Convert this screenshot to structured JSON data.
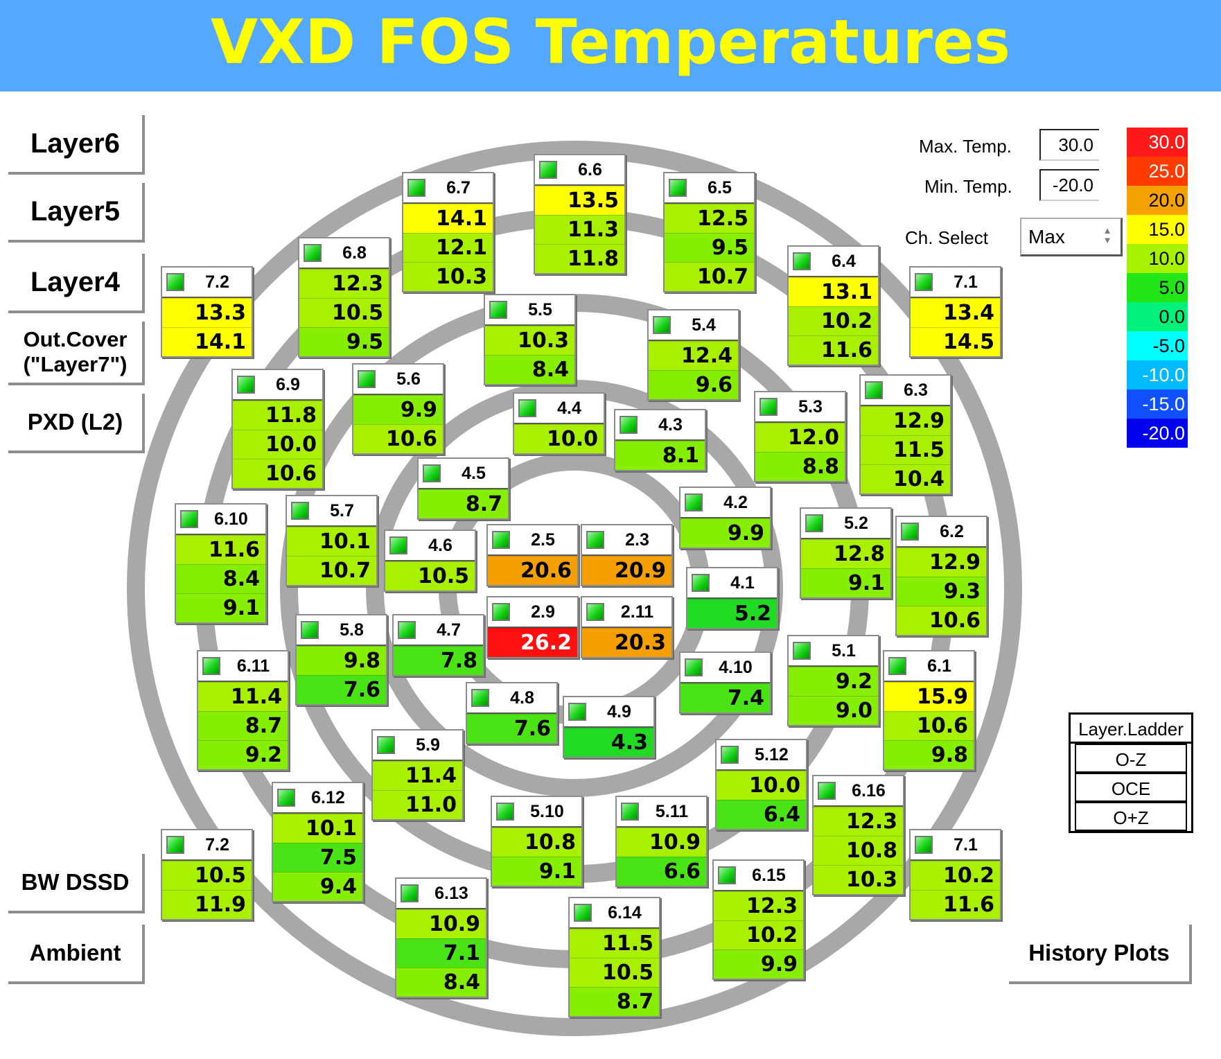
{
  "title": "VXD FOS Temperatures",
  "nav": {
    "layer6": "Layer6",
    "layer5": "Layer5",
    "layer4": "Layer4",
    "out_cover": "Out.Cover\n(\"Layer7\")",
    "pxd": "PXD (L2)",
    "bw_dssd": "BW DSSD",
    "ambient": "Ambient",
    "history": "History Plots"
  },
  "controls": {
    "max_label": "Max. Temp.",
    "max_value": "30.0",
    "min_label": "Min. Temp.",
    "min_value": "-20.0",
    "ch_label": "Ch. Select",
    "ch_value": "Max"
  },
  "colors": {
    "header": "#55a8ff",
    "title": "#ffff00",
    "ring": "#a8a8a8"
  },
  "scale": [
    {
      "label": "30.0",
      "color": "#ff1a1a"
    },
    {
      "label": "25.0",
      "color": "#ff3b00"
    },
    {
      "label": "20.0",
      "color": "#f5a100"
    },
    {
      "label": "15.0",
      "color": "#ffff00"
    },
    {
      "label": "10.0",
      "color": "#a6f200"
    },
    {
      "label": "5.0",
      "color": "#22e61a"
    },
    {
      "label": "0.0",
      "color": "#00f07a"
    },
    {
      "label": "-5.0",
      "color": "#00ffff"
    },
    {
      "label": "-10.0",
      "color": "#00baff"
    },
    {
      "label": "-15.0",
      "color": "#1050ff"
    },
    {
      "label": "-20.0",
      "color": "#0000ee"
    }
  ],
  "legend": {
    "header": "Layer.Ladder",
    "rows": [
      "O-Z",
      "OCE",
      "O+Z"
    ]
  },
  "ladders": [
    {
      "name": "6.7",
      "values": [
        "14.1",
        "12.1",
        "10.3"
      ]
    },
    {
      "name": "6.6",
      "values": [
        "13.5",
        "11.3",
        "11.8"
      ]
    },
    {
      "name": "6.5",
      "values": [
        "12.5",
        "9.5",
        "10.7"
      ]
    },
    {
      "name": "6.8",
      "values": [
        "12.3",
        "10.5",
        "9.5"
      ]
    },
    {
      "name": "6.4",
      "values": [
        "13.1",
        "10.2",
        "11.6"
      ]
    },
    {
      "name": "7.2",
      "values": [
        "13.3",
        "14.1"
      ]
    },
    {
      "name": "7.1",
      "values": [
        "13.4",
        "14.5"
      ]
    },
    {
      "name": "5.5",
      "values": [
        "10.3",
        "8.4"
      ]
    },
    {
      "name": "5.4",
      "values": [
        "12.4",
        "9.6"
      ]
    },
    {
      "name": "6.9",
      "values": [
        "11.8",
        "10.0",
        "10.6"
      ]
    },
    {
      "name": "5.6",
      "values": [
        "9.9",
        "10.6"
      ]
    },
    {
      "name": "4.4",
      "values": [
        "10.0"
      ]
    },
    {
      "name": "4.3",
      "values": [
        "8.1"
      ]
    },
    {
      "name": "5.3",
      "values": [
        "12.0",
        "8.8"
      ]
    },
    {
      "name": "6.3",
      "values": [
        "12.9",
        "11.5",
        "10.4"
      ]
    },
    {
      "name": "4.5",
      "values": [
        "8.7"
      ]
    },
    {
      "name": "4.2",
      "values": [
        "9.9"
      ]
    },
    {
      "name": "6.10",
      "values": [
        "11.6",
        "8.4",
        "9.1"
      ]
    },
    {
      "name": "5.7",
      "values": [
        "10.1",
        "10.7"
      ]
    },
    {
      "name": "4.6",
      "values": [
        "10.5"
      ]
    },
    {
      "name": "2.5",
      "values": [
        "20.6"
      ]
    },
    {
      "name": "2.3",
      "values": [
        "20.9"
      ]
    },
    {
      "name": "5.2",
      "values": [
        "12.8",
        "9.1"
      ]
    },
    {
      "name": "6.2",
      "values": [
        "12.9",
        "9.3",
        "10.6"
      ]
    },
    {
      "name": "4.1",
      "values": [
        "5.2"
      ]
    },
    {
      "name": "2.9",
      "values": [
        "26.2"
      ]
    },
    {
      "name": "2.11",
      "values": [
        "20.3"
      ]
    },
    {
      "name": "5.8",
      "values": [
        "9.8",
        "7.6"
      ]
    },
    {
      "name": "4.7",
      "values": [
        "7.8"
      ]
    },
    {
      "name": "6.11",
      "values": [
        "11.4",
        "8.7",
        "9.2"
      ]
    },
    {
      "name": "4.10",
      "values": [
        "7.4"
      ]
    },
    {
      "name": "5.1",
      "values": [
        "9.2",
        "9.0"
      ]
    },
    {
      "name": "6.1",
      "values": [
        "15.9",
        "10.6",
        "9.8"
      ]
    },
    {
      "name": "4.8",
      "values": [
        "7.6"
      ]
    },
    {
      "name": "4.9",
      "values": [
        "4.3"
      ]
    },
    {
      "name": "5.9",
      "values": [
        "11.4",
        "11.0"
      ]
    },
    {
      "name": "5.12",
      "values": [
        "10.0",
        "6.4"
      ]
    },
    {
      "name": "6.12",
      "values": [
        "10.1",
        "7.5",
        "9.4"
      ]
    },
    {
      "name": "6.16",
      "values": [
        "12.3",
        "10.8",
        "10.3"
      ]
    },
    {
      "name": "5.10",
      "values": [
        "10.8",
        "9.1"
      ]
    },
    {
      "name": "5.11",
      "values": [
        "10.9",
        "6.6"
      ]
    },
    {
      "name": "7.2",
      "values": [
        "10.5",
        "11.9"
      ]
    },
    {
      "name": "7.1",
      "values": [
        "10.2",
        "11.6"
      ]
    },
    {
      "name": "6.15",
      "values": [
        "12.3",
        "10.2",
        "9.9"
      ]
    },
    {
      "name": "6.13",
      "values": [
        "10.9",
        "7.1",
        "8.4"
      ]
    },
    {
      "name": "6.14",
      "values": [
        "11.5",
        "10.5",
        "8.7"
      ]
    }
  ]
}
